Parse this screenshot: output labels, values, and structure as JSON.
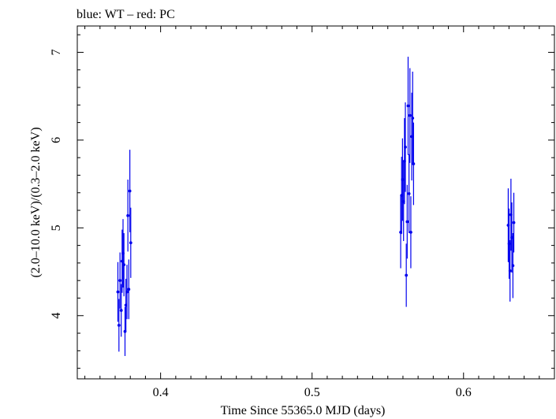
{
  "header": {
    "title": "blue: WT – red: PC"
  },
  "chart_data": {
    "type": "scatter",
    "title": "blue: WT – red: PC",
    "xlabel": "Time Since 55365.0 MJD (days)",
    "ylabel": "(2.0–10.0 keV)/(0.3–2.0 keV)",
    "xlim": [
      0.345,
      0.66
    ],
    "ylim": [
      3.28,
      7.3
    ],
    "x_ticks": [
      0.4,
      0.5,
      0.6
    ],
    "x_tick_labels": [
      "0.4",
      "0.5",
      "0.6"
    ],
    "y_ticks": [
      4,
      5,
      6,
      7
    ],
    "y_tick_labels": [
      "4",
      "5",
      "6",
      "7"
    ],
    "grid": false,
    "series": [
      {
        "name": "WT",
        "color": "#0000ee",
        "points": [
          {
            "x": 0.3718,
            "y": 4.27,
            "err": 0.34
          },
          {
            "x": 0.3725,
            "y": 3.89,
            "err": 0.3
          },
          {
            "x": 0.3732,
            "y": 4.4,
            "err": 0.32
          },
          {
            "x": 0.374,
            "y": 4.06,
            "err": 0.3
          },
          {
            "x": 0.3746,
            "y": 4.62,
            "err": 0.36
          },
          {
            "x": 0.3752,
            "y": 4.71,
            "err": 0.39
          },
          {
            "x": 0.3758,
            "y": 4.58,
            "err": 0.36
          },
          {
            "x": 0.3765,
            "y": 3.82,
            "err": 0.28
          },
          {
            "x": 0.3771,
            "y": 4.12,
            "err": 0.3
          },
          {
            "x": 0.3778,
            "y": 4.27,
            "err": 0.31
          },
          {
            "x": 0.3784,
            "y": 5.14,
            "err": 0.41
          },
          {
            "x": 0.379,
            "y": 4.3,
            "err": 0.34
          },
          {
            "x": 0.3797,
            "y": 5.42,
            "err": 0.47
          },
          {
            "x": 0.3803,
            "y": 4.83,
            "err": 0.4
          },
          {
            "x": 0.5585,
            "y": 4.95,
            "err": 0.41
          },
          {
            "x": 0.5591,
            "y": 5.37,
            "err": 0.44
          },
          {
            "x": 0.5597,
            "y": 5.55,
            "err": 0.47
          },
          {
            "x": 0.5604,
            "y": 5.3,
            "err": 0.45
          },
          {
            "x": 0.561,
            "y": 5.76,
            "err": 0.49
          },
          {
            "x": 0.5616,
            "y": 5.92,
            "err": 0.51
          },
          {
            "x": 0.5622,
            "y": 4.46,
            "err": 0.36
          },
          {
            "x": 0.5628,
            "y": 5.07,
            "err": 0.42
          },
          {
            "x": 0.5634,
            "y": 6.39,
            "err": 0.56
          },
          {
            "x": 0.564,
            "y": 5.39,
            "err": 0.45
          },
          {
            "x": 0.5646,
            "y": 6.28,
            "err": 0.54
          },
          {
            "x": 0.5652,
            "y": 4.95,
            "err": 0.41
          },
          {
            "x": 0.5658,
            "y": 6.04,
            "err": 0.5
          },
          {
            "x": 0.5664,
            "y": 6.25,
            "err": 0.53
          },
          {
            "x": 0.567,
            "y": 5.73,
            "err": 0.47
          },
          {
            "x": 0.6295,
            "y": 5.03,
            "err": 0.42
          },
          {
            "x": 0.6301,
            "y": 4.82,
            "err": 0.4
          },
          {
            "x": 0.6307,
            "y": 4.51,
            "err": 0.35
          },
          {
            "x": 0.6313,
            "y": 5.15,
            "err": 0.41
          },
          {
            "x": 0.6319,
            "y": 4.89,
            "err": 0.4
          },
          {
            "x": 0.6326,
            "y": 4.57,
            "err": 0.37
          },
          {
            "x": 0.6332,
            "y": 5.06,
            "err": 0.34
          }
        ]
      }
    ]
  }
}
